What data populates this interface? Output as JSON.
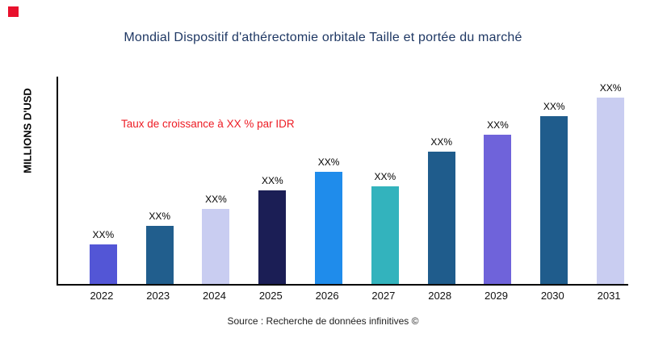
{
  "brand": {
    "square_color": "#e8112d"
  },
  "chart_data": {
    "type": "bar",
    "title": "Mondial Dispositif d'athérectomie orbitale Taille et portée du marché",
    "ylabel": "MILLIONS D'USD",
    "xlabel": "",
    "annotation": "Taux de croissance à XX % par IDR",
    "source": "Source : Recherche de données infinitives ©",
    "categories": [
      "2022",
      "2023",
      "2024",
      "2025",
      "2026",
      "2027",
      "2028",
      "2029",
      "2030",
      "2031"
    ],
    "values": [
      19,
      28,
      36,
      45,
      54,
      47,
      64,
      72,
      81,
      90
    ],
    "bar_labels": [
      "XX%",
      "XX%",
      "XX%",
      "XX%",
      "XX%",
      "XX%",
      "XX%",
      "XX%",
      "XX%",
      "XX%"
    ],
    "colors": [
      "#5356d6",
      "#215e8d",
      "#c9cdf1",
      "#1b1e55",
      "#1f8ceb",
      "#33b3bd",
      "#1f5c8c",
      "#6f63da",
      "#1f5c8c",
      "#c9cdf1"
    ],
    "ylim": [
      0,
      100
    ],
    "grid": false,
    "legend": "none",
    "title_color": "#1f3864",
    "annotation_color": "#ed1c24"
  }
}
